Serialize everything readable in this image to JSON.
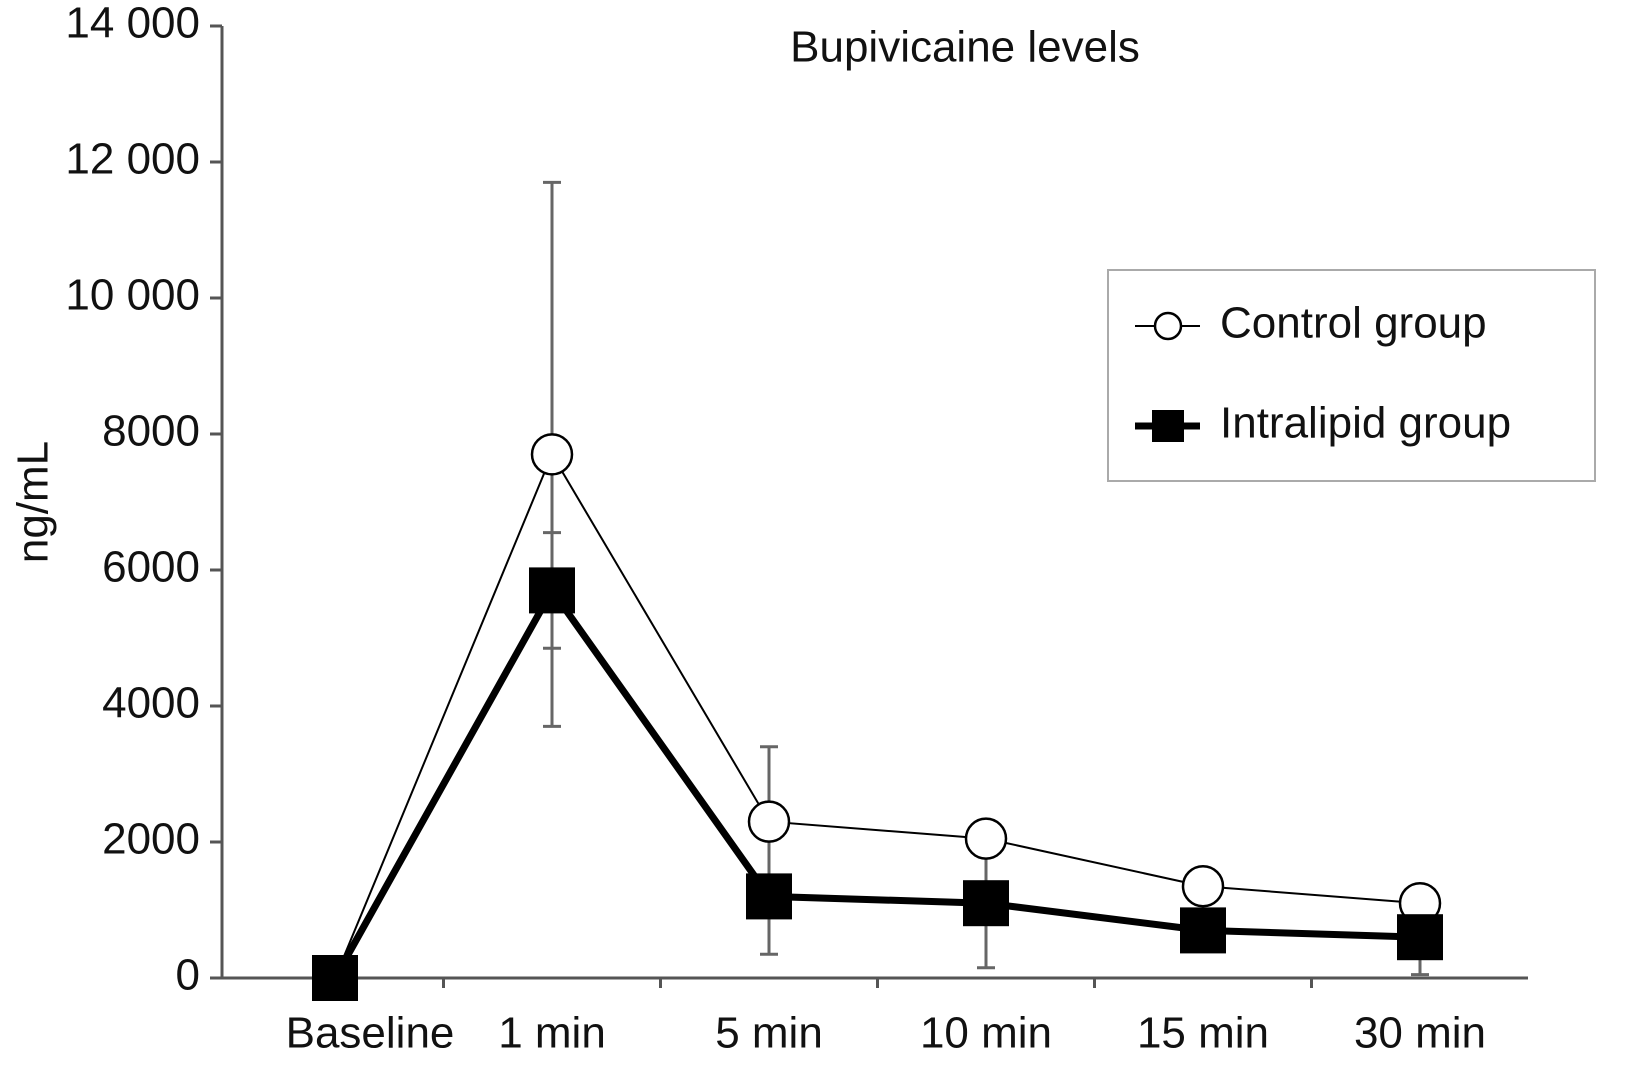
{
  "chart_data": {
    "type": "line",
    "title": "Bupivicaine levels",
    "y_label": "ng/mL",
    "categories": [
      "Baseline",
      "1 min",
      "5 min",
      "10 min",
      "15 min",
      "30 min"
    ],
    "series": [
      {
        "name": "Control group",
        "color": "#000000",
        "marker": "circle",
        "marker_fill": "#ffffff",
        "line_width": 2,
        "values": [
          0,
          7700,
          2300,
          2050,
          1350,
          1100
        ],
        "errors": [
          null,
          4000,
          1100,
          null,
          null,
          null
        ]
      },
      {
        "name": "Intralipid group",
        "color": "#000000",
        "marker": "square",
        "marker_fill": "#000000",
        "line_width": 7,
        "values": [
          0,
          5700,
          1200,
          1100,
          700,
          600
        ],
        "errors": [
          null,
          850,
          850,
          950,
          null,
          550
        ]
      }
    ],
    "ylim": [
      0,
      14000
    ],
    "yticks": [
      0,
      2000,
      4000,
      6000,
      8000,
      {
        "value": 10000,
        "label": "10 000"
      },
      {
        "value": 12000,
        "label": "12 000"
      },
      {
        "value": 14000,
        "label": "14 000"
      }
    ],
    "grid": false,
    "legend": "upper right"
  }
}
